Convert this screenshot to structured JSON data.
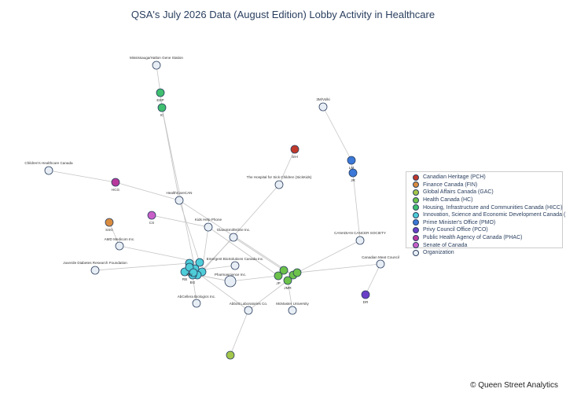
{
  "title": "QSA's July 2026 Data (August Edition) Lobby Activity in Healthcare",
  "credit": "© Queen Street Analytics",
  "legend": [
    {
      "label": "Canadian Heritage (PCH)",
      "color": "#c0392b"
    },
    {
      "label": "Finance Canada (FIN)",
      "color": "#d98c3f"
    },
    {
      "label": "Global Affairs Canada (GAC)",
      "color": "#a4c64a"
    },
    {
      "label": "Health Canada (HC)",
      "color": "#6cc24a"
    },
    {
      "label": "Housing, Infrastructure and Communities Canada (HICC)",
      "color": "#3fbf6f"
    },
    {
      "label": "Innovation, Science and Economic Development Canada (ISED)",
      "color": "#4ecdd8"
    },
    {
      "label": "Prime Minister's Office (PMO)",
      "color": "#3b78d8"
    },
    {
      "label": "Privy Council Office (PCO)",
      "color": "#6a3fc7"
    },
    {
      "label": "Public Health Agency of Canada (PHAC)",
      "color": "#b8399c"
    },
    {
      "label": "Senate of Canada",
      "color": "#c85fc8"
    },
    {
      "label": "Organization",
      "color": "#e8eef5"
    }
  ],
  "nodes": [
    {
      "id": "ms",
      "label": "Mississauga/Halton Gene Station",
      "group": "Organization"
    },
    {
      "id": "eep",
      "label": "EEP",
      "group": "Housing, Infrastructure and Communities Canada (HICC)"
    },
    {
      "id": "ic",
      "label": "IC",
      "group": "Housing, Infrastructure and Communities Canada (HICC)"
    },
    {
      "id": "sek",
      "label": "3M/Volki",
      "group": "Organization"
    },
    {
      "id": "pch1",
      "label": "SIH",
      "group": "Canadian Heritage (PCH)"
    },
    {
      "id": "pmo1",
      "label": "LM",
      "group": "Prime Minister's Office (PMO)"
    },
    {
      "id": "pmo2",
      "label": "JR",
      "group": "Prime Minister's Office (PMO)"
    },
    {
      "id": "sick",
      "label": "The Hospital for Sick Children (SickKids)",
      "group": "Organization"
    },
    {
      "id": "chc",
      "label": "Children's Healthcare Canada",
      "group": "Organization"
    },
    {
      "id": "phac1",
      "label": "HCG",
      "group": "Public Health Agency of Canada (PHAC)"
    },
    {
      "id": "hcan",
      "label": "HealthCareCAN",
      "group": "Organization"
    },
    {
      "id": "sen1",
      "label": "CS",
      "group": "Senate of Canada"
    },
    {
      "id": "kids",
      "label": "Kids Help Phone",
      "group": "Organization"
    },
    {
      "id": "fin1",
      "label": "SSG",
      "group": "Finance Canada (FIN)"
    },
    {
      "id": "gsk",
      "label": "GlaxoSmithKline Inc.",
      "group": "Organization"
    },
    {
      "id": "amd",
      "label": "AMD Medicom Inc.",
      "group": "Organization"
    },
    {
      "id": "ccs",
      "label": "CANADIAN CANCER SOCIETY",
      "group": "Organization"
    },
    {
      "id": "jdrf",
      "label": "Juvenile Diabetes Research Foundation",
      "group": "Organization"
    },
    {
      "id": "ebs",
      "label": "Emergent BioSolutions Canada Inc.",
      "group": "Organization"
    },
    {
      "id": "cmc",
      "label": "Canadian Meat Council",
      "group": "Organization"
    },
    {
      "id": "i1",
      "label": "",
      "group": "Innovation, Science and Economic Development Canada (ISED)"
    },
    {
      "id": "i2",
      "label": "",
      "group": "Innovation, Science and Economic Development Canada (ISED)"
    },
    {
      "id": "i3",
      "label": "",
      "group": "Innovation, Science and Economic Development Canada (ISED)"
    },
    {
      "id": "i4",
      "label": "",
      "group": "Innovation, Science and Economic Development Canada (ISED)"
    },
    {
      "id": "i5",
      "label": "",
      "group": "Innovation, Science and Economic Development Canada (ISED)"
    },
    {
      "id": "i6",
      "label": "RB",
      "group": "Innovation, Science and Economic Development Canada (ISED)"
    },
    {
      "id": "i7",
      "label": "BG",
      "group": "Innovation, Science and Economic Development Canada (ISED)"
    },
    {
      "id": "i8",
      "label": "MN",
      "group": "Innovation, Science and Economic Development Canada (ISED)"
    },
    {
      "id": "i9",
      "label": "",
      "group": "Innovation, Science and Economic Development Canada (ISED)"
    },
    {
      "id": "pharma",
      "label": "Pharmascience Inc.",
      "group": "Organization"
    },
    {
      "id": "h1",
      "label": "JP",
      "group": "Health Canada (HC)"
    },
    {
      "id": "h2",
      "label": "",
      "group": "Health Canada (HC)"
    },
    {
      "id": "h3",
      "label": "",
      "group": "Health Canada (HC)"
    },
    {
      "id": "h4",
      "label": "JMR",
      "group": "Health Canada (HC)"
    },
    {
      "id": "h5",
      "label": "",
      "group": "Health Canada (HC)"
    },
    {
      "id": "pco1",
      "label": "DR",
      "group": "Privy Council Office (PCO)"
    },
    {
      "id": "abbott",
      "label": "Abbott Laboratories Co.",
      "group": "Organization"
    },
    {
      "id": "mcm",
      "label": "McMaster University",
      "group": "Organization"
    },
    {
      "id": "abcel",
      "label": "AbCellera Biologics Inc.",
      "group": "Organization"
    },
    {
      "id": "gac1",
      "label": "",
      "group": "Global Affairs Canada (GAC)"
    }
  ],
  "edges": [
    [
      "ms",
      "eep"
    ],
    [
      "eep",
      "ic"
    ],
    [
      "ic",
      "i3"
    ],
    [
      "sek",
      "pmo1"
    ],
    [
      "pmo1",
      "pmo2"
    ],
    [
      "pmo2",
      "ccs"
    ],
    [
      "ccs",
      "h5"
    ],
    [
      "pch1",
      "sick"
    ],
    [
      "sick",
      "i4"
    ],
    [
      "chc",
      "phac1"
    ],
    [
      "phac1",
      "hcan"
    ],
    [
      "hcan",
      "i2"
    ],
    [
      "hcan",
      "h3"
    ],
    [
      "hcan",
      "ic"
    ],
    [
      "sen1",
      "kids"
    ],
    [
      "kids",
      "i4"
    ],
    [
      "kids",
      "h1"
    ],
    [
      "fin1",
      "amd"
    ],
    [
      "amd",
      "i2"
    ],
    [
      "gsk",
      "i5"
    ],
    [
      "gsk",
      "h2"
    ],
    [
      "jdrf",
      "i1"
    ],
    [
      "ebs",
      "i6"
    ],
    [
      "cmc",
      "h5"
    ],
    [
      "cmc",
      "pco1"
    ],
    [
      "pharma",
      "i5"
    ],
    [
      "pharma",
      "h1"
    ],
    [
      "abbott",
      "i8"
    ],
    [
      "abbott",
      "h4"
    ],
    [
      "abbott",
      "gac1"
    ],
    [
      "mcm",
      "h4"
    ],
    [
      "abcel",
      "i7"
    ],
    [
      "i1",
      "i2"
    ],
    [
      "i2",
      "i3"
    ],
    [
      "i3",
      "i4"
    ],
    [
      "i4",
      "i5"
    ],
    [
      "i5",
      "i9"
    ],
    [
      "i9",
      "i8"
    ],
    [
      "i8",
      "i6"
    ],
    [
      "i6",
      "i1"
    ],
    [
      "i7",
      "i9"
    ],
    [
      "h1",
      "h2"
    ],
    [
      "h2",
      "h3"
    ],
    [
      "h3",
      "h4"
    ],
    [
      "h4",
      "h5"
    ],
    [
      "i5",
      "pharma"
    ]
  ]
}
